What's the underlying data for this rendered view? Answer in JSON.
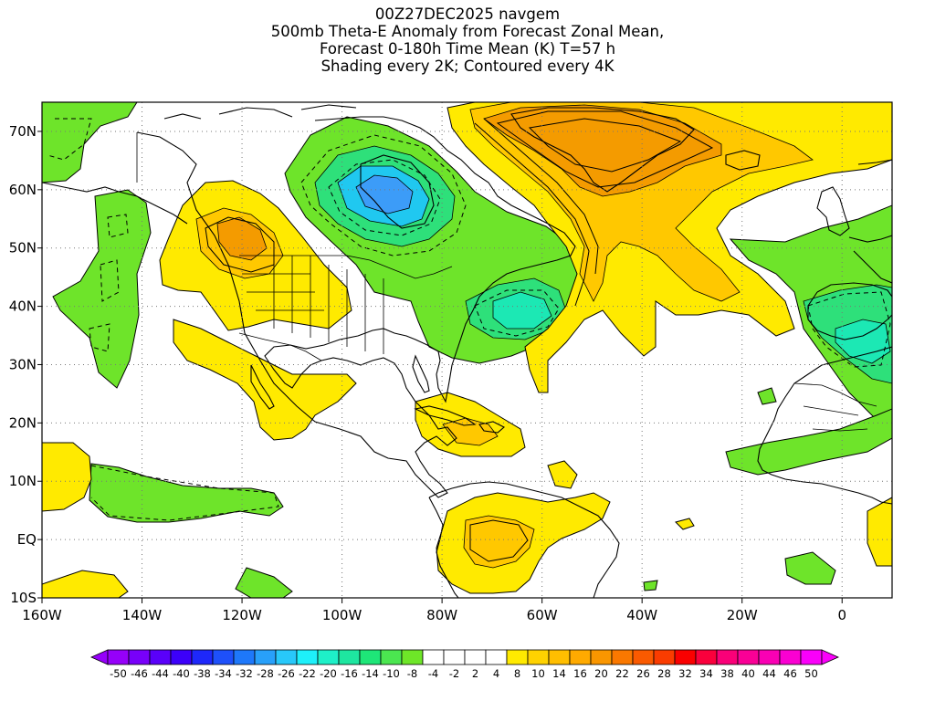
{
  "title": {
    "line1": "00Z27DEC2025 navgem",
    "line2": "500mb Theta-E Anomaly from Forecast Zonal Mean,",
    "line3": "Forecast 0-180h Time Mean (K) T=57 h",
    "line4": "Shading every 2K; Contoured every 4K"
  },
  "map": {
    "lon_range": [
      -160,
      10
    ],
    "lat_range": [
      -10,
      75
    ],
    "x_ticks": [
      "160W",
      "140W",
      "120W",
      "100W",
      "80W",
      "60W",
      "40W",
      "20W",
      "0"
    ],
    "y_ticks": [
      "70N",
      "60N",
      "50N",
      "40N",
      "30N",
      "20N",
      "10N",
      "EQ",
      "10S"
    ],
    "grid": "dotted",
    "colors": {
      "green": "#6ee42a",
      "yellow": "#ffea00",
      "gold": "#ffc800",
      "orange": "#f49b00",
      "green_cyan": "#2ee07a",
      "cyan_green": "#1ce8b4",
      "cyan": "#20c8f0",
      "light_blue": "#3c9cf8"
    }
  },
  "colorbar": {
    "labels": [
      "-50",
      "-46",
      "-44",
      "-40",
      "-38",
      "-34",
      "-32",
      "-28",
      "-26",
      "-22",
      "-20",
      "-16",
      "-14",
      "-10",
      "-8",
      "-4",
      "-2",
      "2",
      "4",
      "8",
      "10",
      "14",
      "16",
      "20",
      "22",
      "26",
      "28",
      "32",
      "34",
      "38",
      "40",
      "44",
      "46",
      "50"
    ],
    "colors": [
      "#9600fa",
      "#7800fa",
      "#5a00fa",
      "#3c00fa",
      "#1e28fa",
      "#1e50fa",
      "#1e78fa",
      "#28a0fa",
      "#28c8fa",
      "#1ef0fa",
      "#1ef0c8",
      "#1ee6a0",
      "#1ee678",
      "#4be650",
      "#6ee628",
      "#ffffff",
      "#ffffff",
      "#ffffff",
      "#ffffff",
      "#ffea00",
      "#ffd200",
      "#ffbe00",
      "#ffaa00",
      "#fa9600",
      "#fa7800",
      "#fa5a00",
      "#fa3c00",
      "#fa0000",
      "#fa003c",
      "#fa0078",
      "#fa0096",
      "#fa00b4",
      "#fa00d2",
      "#fa00fa"
    ]
  }
}
